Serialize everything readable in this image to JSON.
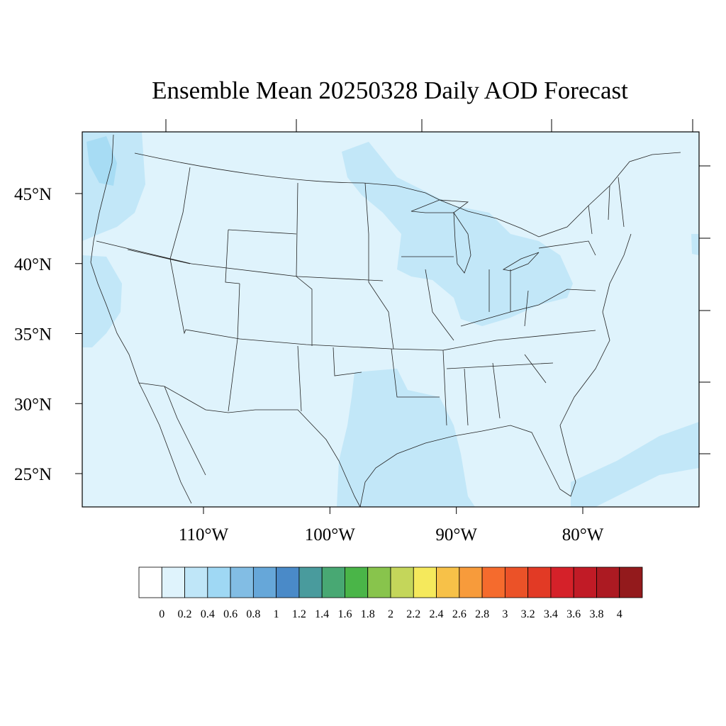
{
  "title": "Ensemble Mean 20250328 Daily AOD Forecast",
  "map": {
    "lat_labels": [
      {
        "lat": 45,
        "text": "45°N"
      },
      {
        "lat": 40,
        "text": "40°N"
      },
      {
        "lat": 35,
        "text": "35°N"
      },
      {
        "lat": 30,
        "text": "30°N"
      },
      {
        "lat": 25,
        "text": "25°N"
      }
    ],
    "lon_labels": [
      {
        "lon": -110,
        "text": "110°W"
      },
      {
        "lon": -100,
        "text": "100°W"
      },
      {
        "lon": -90,
        "text": "90°W"
      },
      {
        "lon": -80,
        "text": "80°W"
      }
    ],
    "colors": {
      "background_field": "#dff3fc",
      "level_0_2": "#c2e7f8",
      "level_0_4": "#a7dcf4",
      "boundary": "#222222"
    }
  },
  "colorbar": {
    "colors": [
      "#ffffff",
      "#dff3fc",
      "#bfe6f8",
      "#9fd8f4",
      "#82bde4",
      "#66a7d9",
      "#4a8ac8",
      "#499b9d",
      "#48a873",
      "#4ab548",
      "#88c44c",
      "#c4d65a",
      "#f5e95c",
      "#f7c148",
      "#f79b3b",
      "#f56b2d",
      "#eb5228",
      "#e23a25",
      "#d52129",
      "#c11b26",
      "#ac1a22",
      "#931a1c"
    ],
    "labels": [
      "0",
      "0.2",
      "0.4",
      "0.6",
      "0.8",
      "1",
      "1.2",
      "1.4",
      "1.6",
      "1.8",
      "2",
      "2.2",
      "2.4",
      "2.6",
      "2.8",
      "3",
      "3.2",
      "3.4",
      "3.6",
      "3.8",
      "4"
    ]
  }
}
